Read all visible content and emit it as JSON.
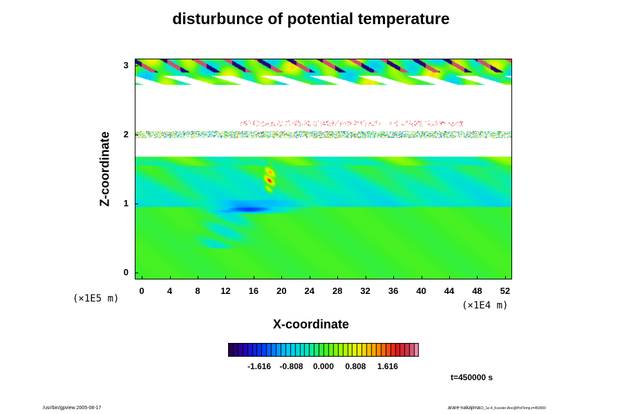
{
  "chart_data": {
    "type": "heatmap",
    "title": "disturbunce of potential temperature",
    "xlabel": "X-coordinate",
    "ylabel": "Z-coordinate",
    "x_scale_label": "(×1E4 m)",
    "z_scale_label": "(×1E5 m)",
    "xlim": [
      -1,
      53
    ],
    "ylim": [
      -0.1,
      3.1
    ],
    "x_ticks": [
      "0",
      "4",
      "8",
      "12",
      "16",
      "20",
      "24",
      "28",
      "32",
      "36",
      "40",
      "44",
      "48",
      "52"
    ],
    "y_ticks": [
      "0",
      "1",
      "2",
      "3"
    ],
    "colorbar": {
      "min": -2.4,
      "max": 2.4,
      "tick_labels": [
        "-1.616",
        "-0.808",
        "0.000",
        "0.808",
        "1.616"
      ],
      "tick_values": [
        -1.616,
        -0.808,
        0.0,
        0.808,
        1.616
      ]
    },
    "field_description_regions": [
      {
        "z_range": [
          0,
          0.95
        ],
        "value": 0.0
      },
      {
        "z_range": [
          0.95,
          1.65
        ],
        "value": -0.3
      },
      {
        "z_range": [
          1.65,
          2.7
        ],
        "value": null
      },
      {
        "z_range": [
          2.7,
          3.1
        ],
        "value": 0.0
      }
    ],
    "timestamp": "t=450000 s",
    "footer_left": "/usr/bin/gpview 2005-08-17",
    "footer_right": "arare-nakajima",
    "footer_right_small": "Ct_1e-4_Kosoler-Ano@PotTemp,t=450000"
  }
}
